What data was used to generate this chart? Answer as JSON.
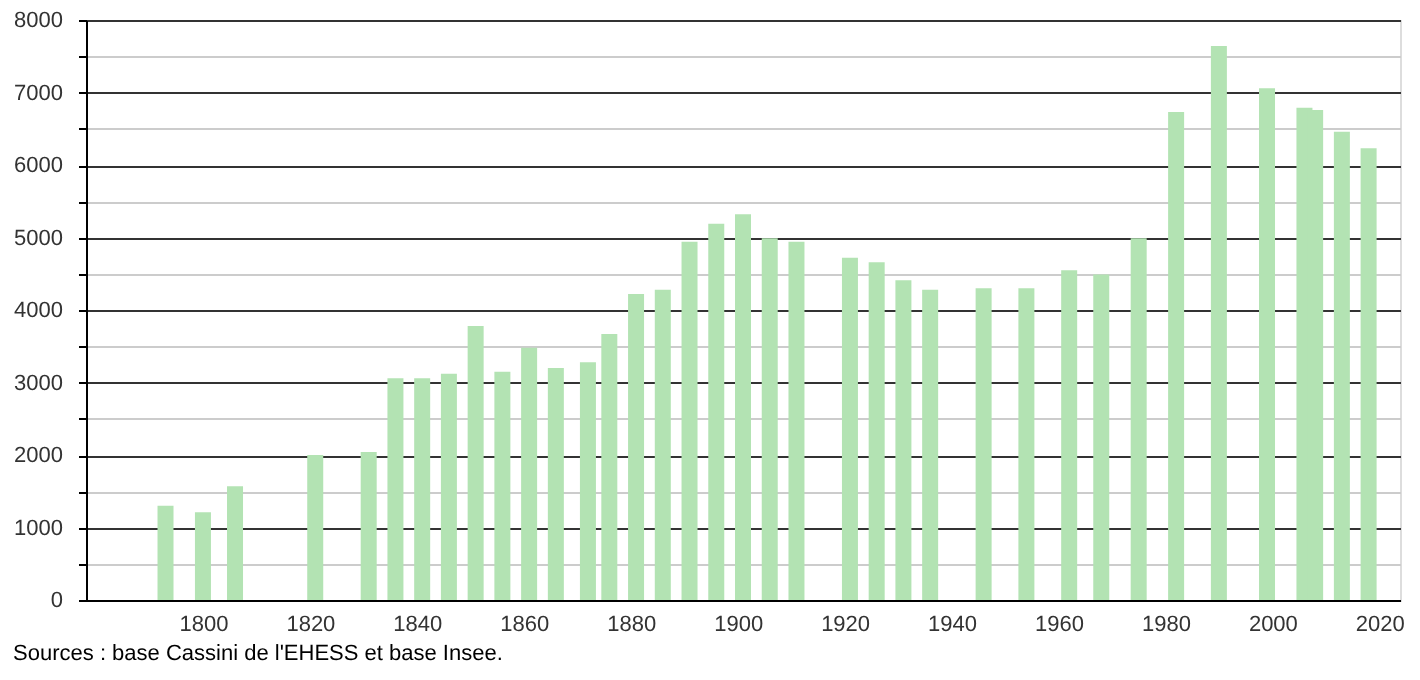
{
  "chart_data": {
    "type": "bar",
    "color": "#b3e3b3",
    "x": [
      1793,
      1800,
      1806,
      1821,
      1831,
      1836,
      1841,
      1846,
      1851,
      1856,
      1861,
      1866,
      1872,
      1876,
      1881,
      1886,
      1891,
      1896,
      1901,
      1906,
      1911,
      1921,
      1926,
      1931,
      1936,
      1946,
      1954,
      1962,
      1968,
      1975,
      1982,
      1990,
      1999,
      2006,
      2008,
      2013,
      2018
    ],
    "values": [
      1300,
      1210,
      1570,
      2000,
      2040,
      3060,
      3060,
      3120,
      3780,
      3150,
      3480,
      3200,
      3280,
      3670,
      4220,
      4280,
      4940,
      5190,
      5320,
      4990,
      4940,
      4720,
      4660,
      4410,
      4280,
      4300,
      4300,
      4550,
      4490,
      4990,
      6730,
      7640,
      7060,
      6790,
      6760,
      6460,
      6230
    ],
    "xlim": [
      1780,
      2022
    ],
    "xticks": [
      1800,
      1820,
      1840,
      1860,
      1880,
      1900,
      1920,
      1940,
      1960,
      1980,
      2000,
      2020
    ],
    "ylim": [
      0,
      8000
    ],
    "yticks": [
      0,
      {
        "value": 500,
        "label": null
      },
      1000,
      {
        "value": 1500,
        "label": null
      },
      2000,
      {
        "value": 2500,
        "label": null
      },
      3000,
      {
        "value": 3500,
        "label": null
      },
      4000,
      {
        "value": 4500,
        "label": null
      },
      5000,
      {
        "value": 5500,
        "label": null
      },
      6000,
      {
        "value": 6500,
        "label": null
      },
      7000,
      {
        "value": 7500,
        "label": null
      },
      8000
    ],
    "grid": "y",
    "annotations": [
      "Sources : base Cassini de l'EHESS et base Insee."
    ]
  }
}
